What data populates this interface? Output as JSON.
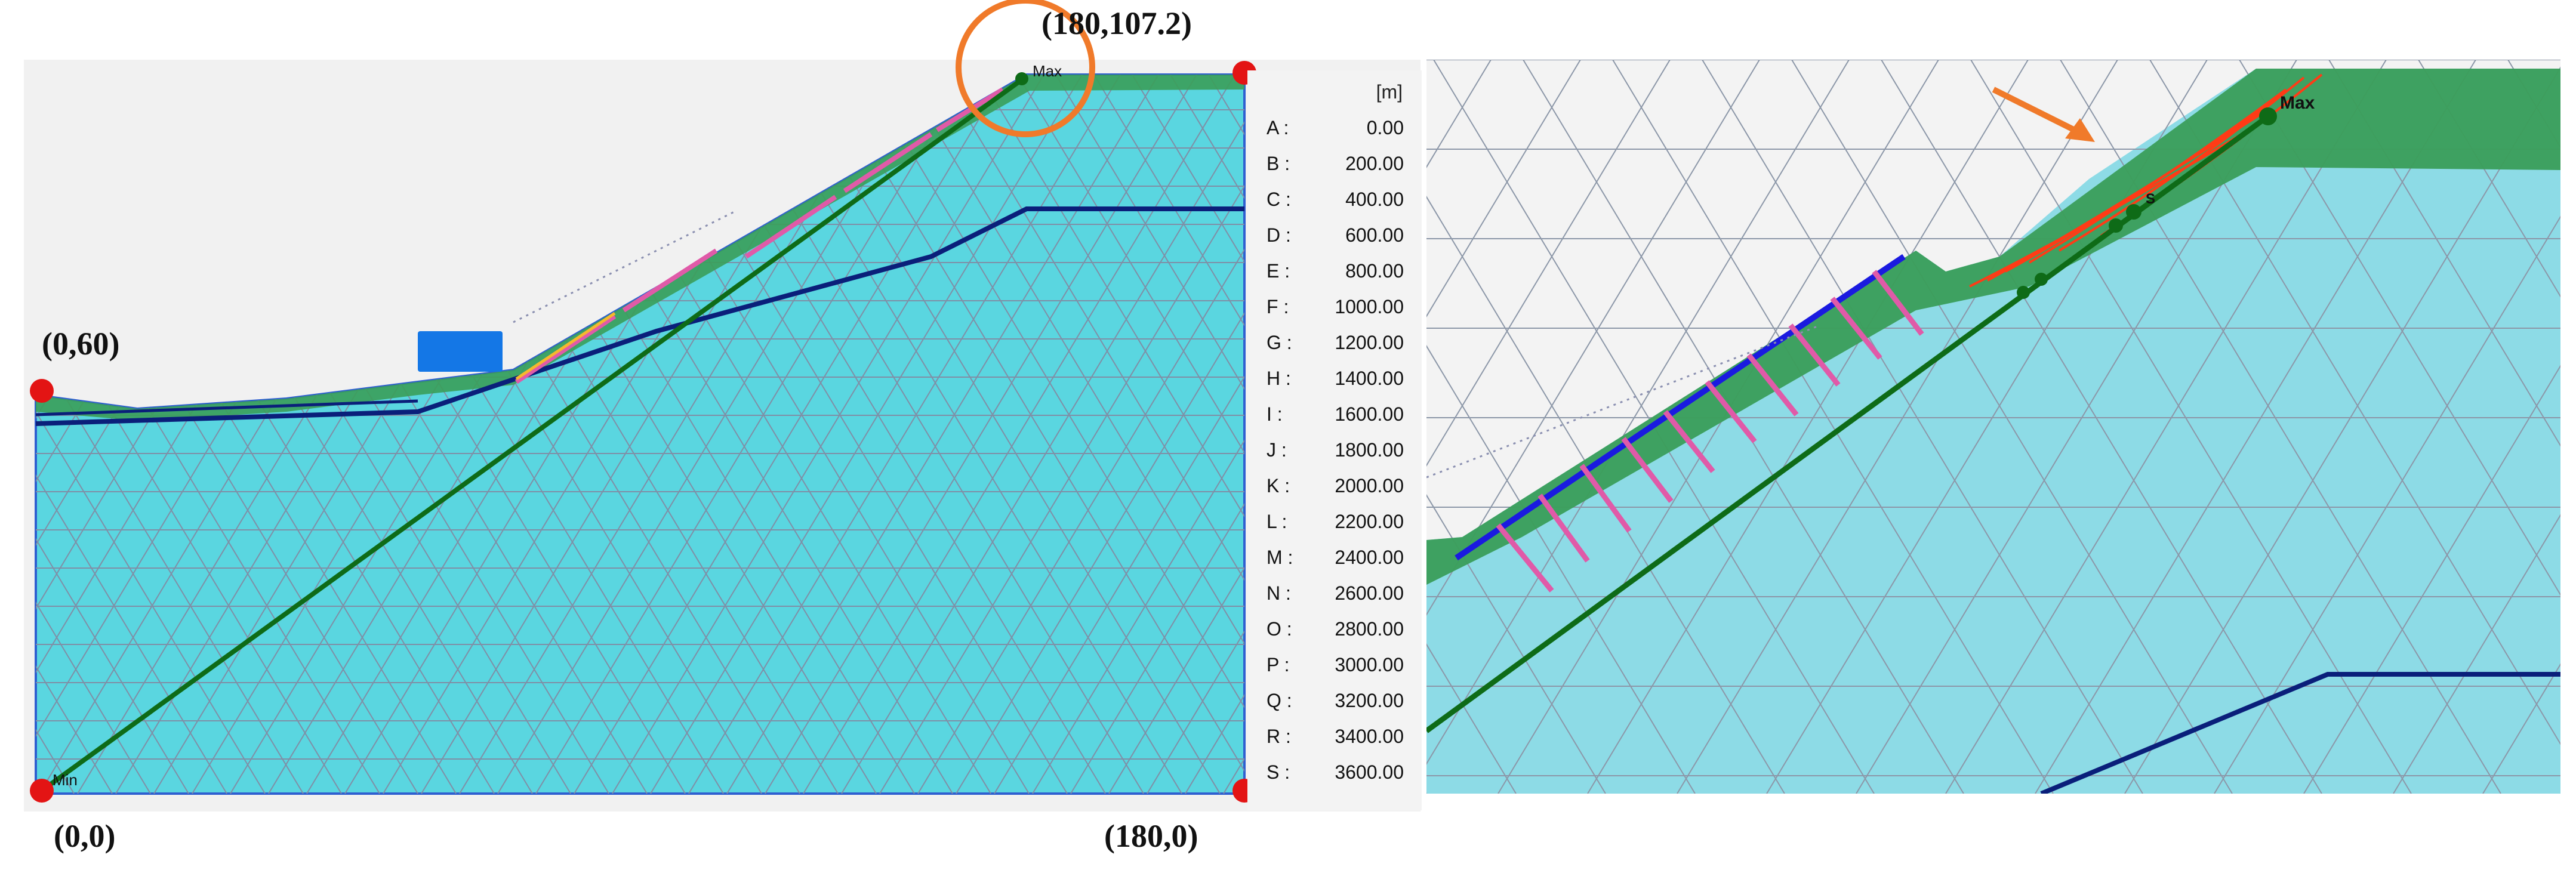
{
  "left_panel": {
    "corner_labels": {
      "top_right": "(180,107.2)",
      "left_mid": "(0,60)",
      "bottom_left": "(0,0)",
      "bottom_right": "(180,0)"
    },
    "point_labels": {
      "min": "Min",
      "max": "Max"
    },
    "legend": {
      "unit": "[m]",
      "entries": [
        {
          "key": "A :",
          "value": "0.00"
        },
        {
          "key": "B :",
          "value": "200.00"
        },
        {
          "key": "C :",
          "value": "400.00"
        },
        {
          "key": "D :",
          "value": "600.00"
        },
        {
          "key": "E :",
          "value": "800.00"
        },
        {
          "key": "F :",
          "value": "1000.00"
        },
        {
          "key": "G :",
          "value": "1200.00"
        },
        {
          "key": "H :",
          "value": "1400.00"
        },
        {
          "key": "I :",
          "value": "1600.00"
        },
        {
          "key": "J :",
          "value": "1800.00"
        },
        {
          "key": "K :",
          "value": "2000.00"
        },
        {
          "key": "L :",
          "value": "2200.00"
        },
        {
          "key": "M :",
          "value": "2400.00"
        },
        {
          "key": "N :",
          "value": "2600.00"
        },
        {
          "key": "O :",
          "value": "2800.00"
        },
        {
          "key": "P :",
          "value": "3000.00"
        },
        {
          "key": "Q :",
          "value": "3200.00"
        },
        {
          "key": "R :",
          "value": "3400.00"
        },
        {
          "key": "S :",
          "value": "3600.00"
        }
      ]
    }
  },
  "right_panel": {
    "point_labels": {
      "max": "Max",
      "s": "S"
    }
  },
  "colors": {
    "mesh_fill": "#5ad6e0",
    "mesh_line": "#7f8fa6",
    "soil_layer": "#0a1f7a",
    "cross_section": "#0e6b17",
    "surface_green": "#3a9e5a",
    "anchor": "#e05aa8",
    "corner_point": "#e31414",
    "highlight_circle": "#f07a2a",
    "arrow": "#f07a2a",
    "load": "#1477e6"
  }
}
